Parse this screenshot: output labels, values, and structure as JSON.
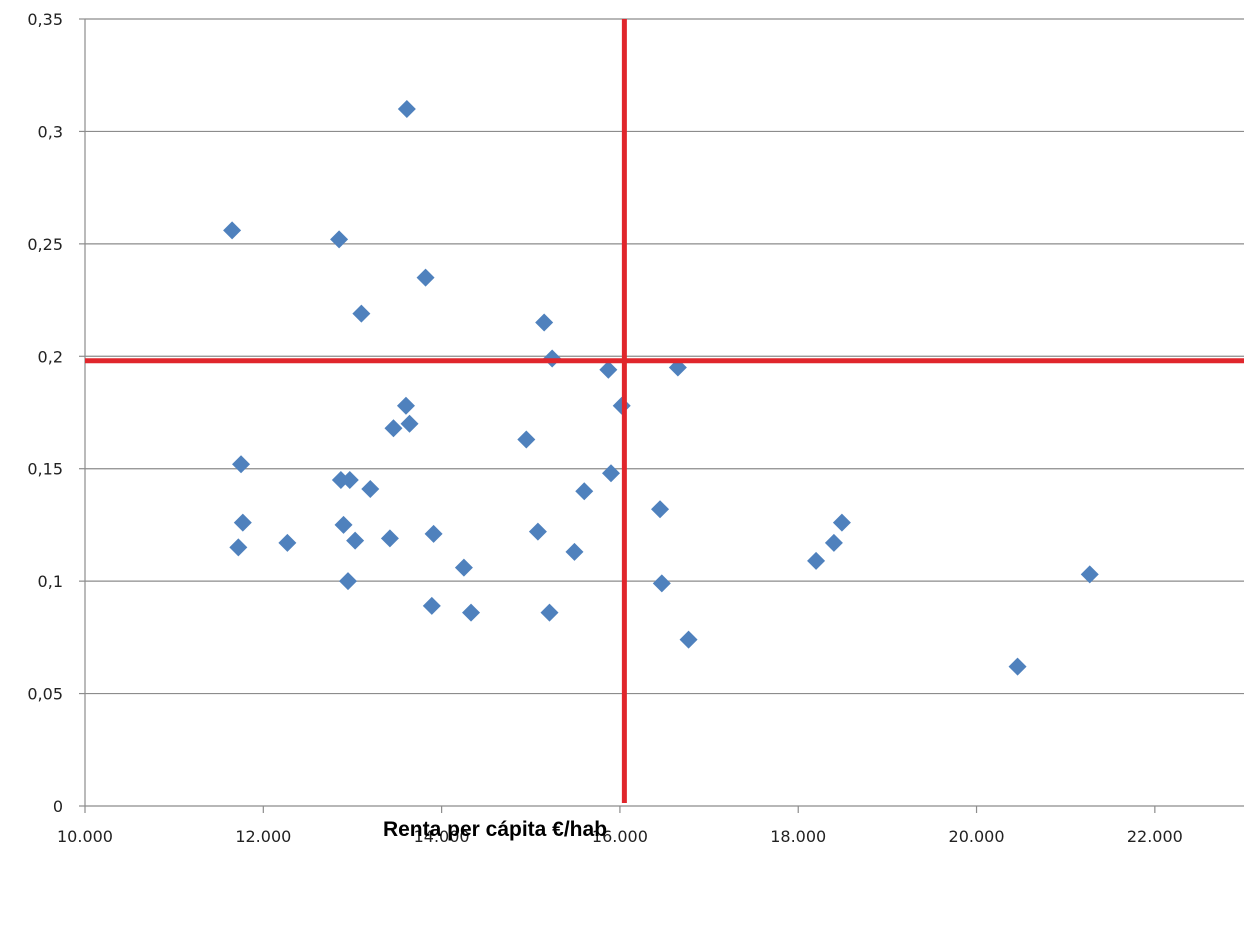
{
  "chart_data": {
    "type": "scatter",
    "title": "",
    "xlabel": "Renta per cápita €/hab",
    "ylabel": "",
    "xlim": [
      10000,
      23000
    ],
    "ylim": [
      0,
      0.35
    ],
    "x_ticks": [
      10000,
      12000,
      14000,
      16000,
      18000,
      20000,
      22000
    ],
    "x_tick_labels": [
      "10.000",
      "12.000",
      "14.000",
      "16.000",
      "18.000",
      "20.000",
      "22.000"
    ],
    "y_ticks": [
      0,
      0.05,
      0.1,
      0.15,
      0.2,
      0.25,
      0.3,
      0.35
    ],
    "y_tick_labels": [
      "0",
      "0,05",
      "0,1",
      "0,15",
      "0,2",
      "0,25",
      "0,3",
      "0,35"
    ],
    "grid": "horizontal",
    "legend": "none",
    "marker": "diamond",
    "colors": {
      "points": "#4f81bd",
      "reference_lines": "#e0262c",
      "grid": "#8c8c8c"
    },
    "reference_lines": {
      "x": 16050,
      "y": 0.198
    },
    "series": [
      {
        "points": [
          [
            11650,
            0.256
          ],
          [
            11720,
            0.115
          ],
          [
            11750,
            0.152
          ],
          [
            11770,
            0.126
          ],
          [
            12270,
            0.117
          ],
          [
            12850,
            0.252
          ],
          [
            12870,
            0.145
          ],
          [
            12900,
            0.125
          ],
          [
            12950,
            0.1
          ],
          [
            12970,
            0.145
          ],
          [
            13030,
            0.118
          ],
          [
            13100,
            0.219
          ],
          [
            13200,
            0.141
          ],
          [
            13420,
            0.119
          ],
          [
            13460,
            0.168
          ],
          [
            13600,
            0.178
          ],
          [
            13610,
            0.31
          ],
          [
            13640,
            0.17
          ],
          [
            13820,
            0.235
          ],
          [
            13890,
            0.089
          ],
          [
            13910,
            0.121
          ],
          [
            14250,
            0.106
          ],
          [
            14330,
            0.086
          ],
          [
            14950,
            0.163
          ],
          [
            15080,
            0.122
          ],
          [
            15150,
            0.215
          ],
          [
            15210,
            0.086
          ],
          [
            15240,
            0.199
          ],
          [
            15490,
            0.113
          ],
          [
            15600,
            0.14
          ],
          [
            15870,
            0.194
          ],
          [
            15900,
            0.148
          ],
          [
            16020,
            0.178
          ],
          [
            16450,
            0.132
          ],
          [
            16470,
            0.099
          ],
          [
            16650,
            0.195
          ],
          [
            16770,
            0.074
          ],
          [
            18200,
            0.109
          ],
          [
            18400,
            0.117
          ],
          [
            18490,
            0.126
          ],
          [
            20460,
            0.062
          ],
          [
            21270,
            0.103
          ]
        ]
      }
    ]
  }
}
